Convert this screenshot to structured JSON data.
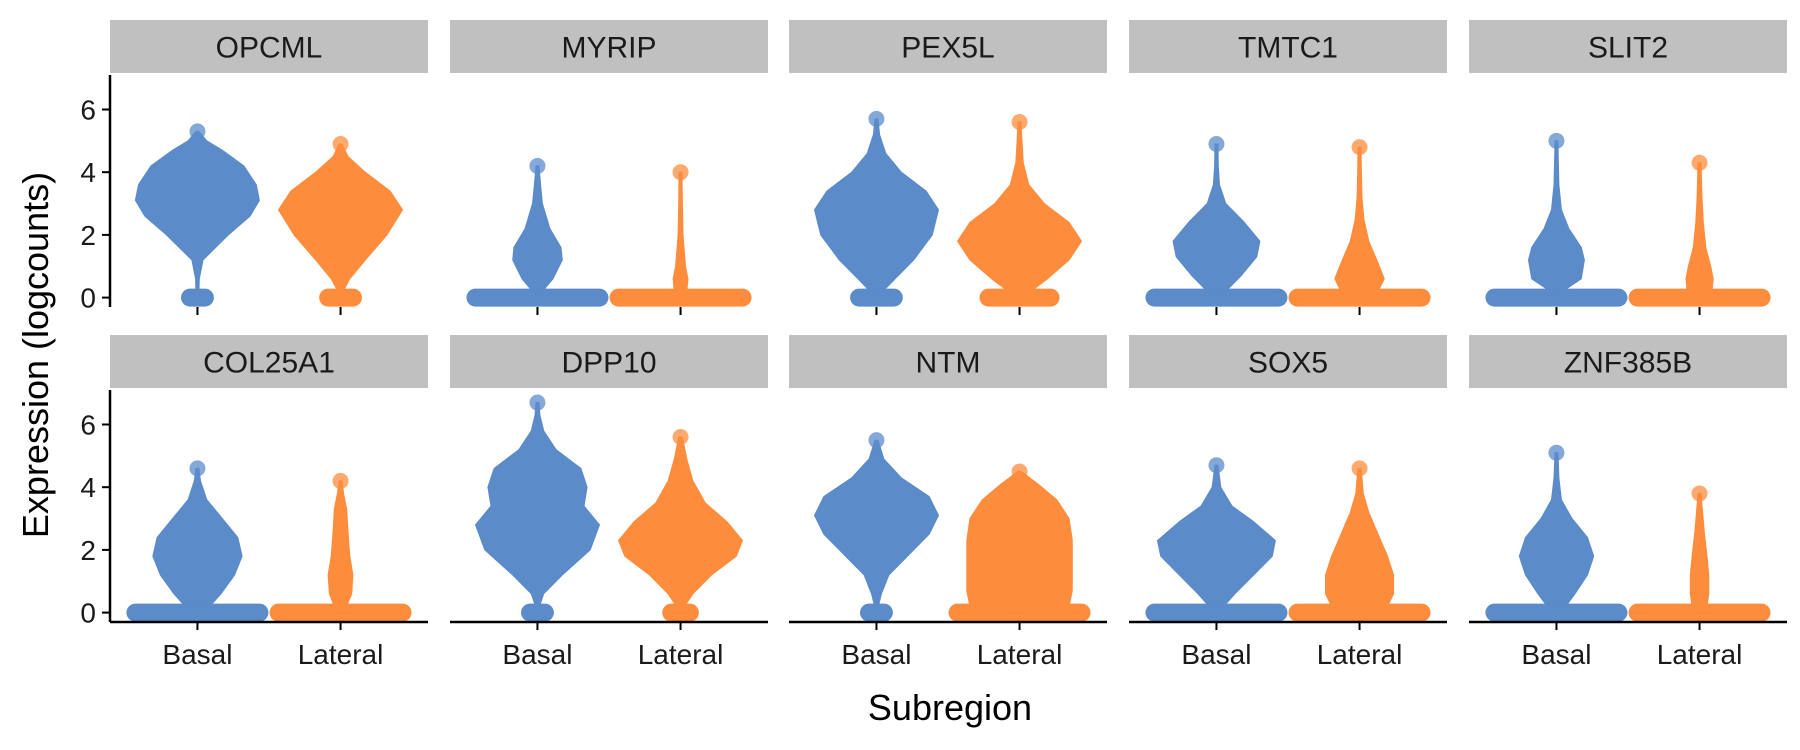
{
  "chart_data": {
    "type": "violin",
    "xlabel": "Subregion",
    "ylabel": "Expression (logcounts)",
    "categories": [
      "Basal",
      "Lateral"
    ],
    "ylim": [
      -0.3,
      7.1
    ],
    "yticks": [
      0,
      2,
      4,
      6
    ],
    "colors": {
      "Basal": "#5b8bc9",
      "Lateral": "#fd8c3c",
      "strip": "#c0c0c0"
    },
    "panels": [
      {
        "gene": "OPCML",
        "violins": [
          {
            "group": "Basal",
            "max": 5.3,
            "zero_width": 0.12,
            "profile": [
              [
                0.15,
                0.01
              ],
              [
                0.6,
                0.03
              ],
              [
                1.2,
                0.09
              ],
              [
                2.0,
                0.5
              ],
              [
                2.6,
                0.85
              ],
              [
                3.1,
                1.0
              ],
              [
                3.6,
                0.95
              ],
              [
                4.2,
                0.75
              ],
              [
                4.7,
                0.4
              ],
              [
                5.0,
                0.15
              ],
              [
                5.3,
                0.02
              ]
            ]
          },
          {
            "group": "Lateral",
            "max": 4.9,
            "zero_width": 0.2,
            "profile": [
              [
                0.15,
                0.03
              ],
              [
                0.6,
                0.15
              ],
              [
                1.2,
                0.4
              ],
              [
                2.0,
                0.75
              ],
              [
                2.8,
                1.0
              ],
              [
                3.4,
                0.8
              ],
              [
                4.0,
                0.4
              ],
              [
                4.5,
                0.12
              ],
              [
                4.9,
                0.02
              ]
            ]
          }
        ]
      },
      {
        "gene": "MYRIP",
        "violins": [
          {
            "group": "Basal",
            "max": 4.2,
            "zero_width": 1.0,
            "profile": [
              [
                0.2,
                0.08
              ],
              [
                0.6,
                0.25
              ],
              [
                1.2,
                0.4
              ],
              [
                1.6,
                0.38
              ],
              [
                2.2,
                0.2
              ],
              [
                3.0,
                0.08
              ],
              [
                3.6,
                0.05
              ],
              [
                4.2,
                0.02
              ]
            ]
          },
          {
            "group": "Lateral",
            "max": 4.0,
            "zero_width": 1.0,
            "profile": [
              [
                0.2,
                0.1
              ],
              [
                0.6,
                0.12
              ],
              [
                1.0,
                0.08
              ],
              [
                2.0,
                0.04
              ],
              [
                3.0,
                0.03
              ],
              [
                4.0,
                0.01
              ]
            ]
          }
        ]
      },
      {
        "gene": "PEX5L",
        "violins": [
          {
            "group": "Basal",
            "max": 5.7,
            "zero_width": 0.28,
            "profile": [
              [
                0.15,
                0.08
              ],
              [
                0.6,
                0.3
              ],
              [
                1.2,
                0.6
              ],
              [
                2.0,
                0.9
              ],
              [
                2.8,
                1.0
              ],
              [
                3.4,
                0.8
              ],
              [
                4.0,
                0.4
              ],
              [
                4.6,
                0.15
              ],
              [
                5.2,
                0.05
              ],
              [
                5.7,
                0.02
              ]
            ]
          },
          {
            "group": "Lateral",
            "max": 5.6,
            "zero_width": 0.5,
            "profile": [
              [
                0.15,
                0.15
              ],
              [
                0.6,
                0.45
              ],
              [
                1.2,
                0.8
              ],
              [
                1.8,
                1.0
              ],
              [
                2.4,
                0.8
              ],
              [
                3.0,
                0.4
              ],
              [
                3.6,
                0.15
              ],
              [
                4.3,
                0.06
              ],
              [
                5.0,
                0.04
              ],
              [
                5.6,
                0.01
              ]
            ]
          }
        ]
      },
      {
        "gene": "TMTC1",
        "violins": [
          {
            "group": "Basal",
            "max": 4.9,
            "zero_width": 1.0,
            "profile": [
              [
                0.2,
                0.15
              ],
              [
                0.7,
                0.4
              ],
              [
                1.3,
                0.65
              ],
              [
                1.8,
                0.7
              ],
              [
                2.4,
                0.45
              ],
              [
                3.0,
                0.15
              ],
              [
                3.6,
                0.05
              ],
              [
                4.2,
                0.03
              ],
              [
                4.9,
                0.02
              ]
            ]
          },
          {
            "group": "Lateral",
            "max": 4.8,
            "zero_width": 1.0,
            "profile": [
              [
                0.2,
                0.3
              ],
              [
                0.6,
                0.4
              ],
              [
                1.1,
                0.3
              ],
              [
                1.8,
                0.15
              ],
              [
                2.5,
                0.07
              ],
              [
                3.2,
                0.04
              ],
              [
                4.0,
                0.03
              ],
              [
                4.8,
                0.01
              ]
            ]
          }
        ]
      },
      {
        "gene": "SLIT2",
        "violins": [
          {
            "group": "Basal",
            "max": 5.0,
            "zero_width": 1.0,
            "profile": [
              [
                0.2,
                0.1
              ],
              [
                0.6,
                0.4
              ],
              [
                1.2,
                0.45
              ],
              [
                1.6,
                0.4
              ],
              [
                2.2,
                0.2
              ],
              [
                2.8,
                0.08
              ],
              [
                3.6,
                0.04
              ],
              [
                4.4,
                0.03
              ],
              [
                5.0,
                0.01
              ]
            ]
          },
          {
            "group": "Lateral",
            "max": 4.3,
            "zero_width": 1.0,
            "profile": [
              [
                0.2,
                0.2
              ],
              [
                0.6,
                0.22
              ],
              [
                1.0,
                0.18
              ],
              [
                1.6,
                0.1
              ],
              [
                2.4,
                0.06
              ],
              [
                3.2,
                0.04
              ],
              [
                4.3,
                0.01
              ]
            ]
          }
        ]
      },
      {
        "gene": "COL25A1",
        "violins": [
          {
            "group": "Basal",
            "max": 4.6,
            "zero_width": 1.0,
            "profile": [
              [
                0.2,
                0.2
              ],
              [
                0.6,
                0.38
              ],
              [
                1.2,
                0.6
              ],
              [
                1.8,
                0.72
              ],
              [
                2.4,
                0.65
              ],
              [
                3.0,
                0.4
              ],
              [
                3.6,
                0.15
              ],
              [
                4.2,
                0.05
              ],
              [
                4.6,
                0.02
              ]
            ]
          },
          {
            "group": "Lateral",
            "max": 4.2,
            "zero_width": 1.0,
            "profile": [
              [
                0.2,
                0.1
              ],
              [
                0.6,
                0.18
              ],
              [
                1.2,
                0.2
              ],
              [
                1.8,
                0.15
              ],
              [
                2.6,
                0.12
              ],
              [
                3.3,
                0.1
              ],
              [
                3.8,
                0.05
              ],
              [
                4.2,
                0.02
              ]
            ]
          }
        ]
      },
      {
        "gene": "DPP10",
        "violins": [
          {
            "group": "Basal",
            "max": 6.7,
            "zero_width": 0.12,
            "profile": [
              [
                0.15,
                0.02
              ],
              [
                0.6,
                0.1
              ],
              [
                1.2,
                0.4
              ],
              [
                2.0,
                0.85
              ],
              [
                2.8,
                1.0
              ],
              [
                3.4,
                0.75
              ],
              [
                4.0,
                0.8
              ],
              [
                4.6,
                0.7
              ],
              [
                5.2,
                0.3
              ],
              [
                5.8,
                0.1
              ],
              [
                6.3,
                0.04
              ],
              [
                6.7,
                0.02
              ]
            ]
          },
          {
            "group": "Lateral",
            "max": 5.6,
            "zero_width": 0.15,
            "profile": [
              [
                0.15,
                0.05
              ],
              [
                0.6,
                0.2
              ],
              [
                1.2,
                0.5
              ],
              [
                1.8,
                0.9
              ],
              [
                2.3,
                1.0
              ],
              [
                2.9,
                0.75
              ],
              [
                3.5,
                0.4
              ],
              [
                4.2,
                0.2
              ],
              [
                4.9,
                0.1
              ],
              [
                5.6,
                0.03
              ]
            ]
          }
        ]
      },
      {
        "gene": "NTM",
        "violins": [
          {
            "group": "Basal",
            "max": 5.5,
            "zero_width": 0.12,
            "profile": [
              [
                0.15,
                0.02
              ],
              [
                0.6,
                0.08
              ],
              [
                1.2,
                0.2
              ],
              [
                1.8,
                0.5
              ],
              [
                2.5,
                0.85
              ],
              [
                3.1,
                1.0
              ],
              [
                3.7,
                0.85
              ],
              [
                4.3,
                0.4
              ],
              [
                4.9,
                0.12
              ],
              [
                5.5,
                0.02
              ]
            ]
          },
          {
            "group": "Lateral",
            "max": 4.5,
            "zero_width": 1.0,
            "profile": [
              [
                0.2,
                0.8
              ],
              [
                0.7,
                0.85
              ],
              [
                1.5,
                0.85
              ],
              [
                2.3,
                0.85
              ],
              [
                3.0,
                0.8
              ],
              [
                3.6,
                0.6
              ],
              [
                4.1,
                0.3
              ],
              [
                4.5,
                0.03
              ]
            ]
          }
        ]
      },
      {
        "gene": "SOX5",
        "violins": [
          {
            "group": "Basal",
            "max": 4.7,
            "zero_width": 1.0,
            "profile": [
              [
                0.2,
                0.12
              ],
              [
                0.6,
                0.3
              ],
              [
                1.2,
                0.6
              ],
              [
                1.8,
                0.9
              ],
              [
                2.3,
                0.95
              ],
              [
                2.9,
                0.6
              ],
              [
                3.4,
                0.25
              ],
              [
                4.0,
                0.07
              ],
              [
                4.7,
                0.02
              ]
            ]
          },
          {
            "group": "Lateral",
            "max": 4.6,
            "zero_width": 1.0,
            "profile": [
              [
                0.2,
                0.45
              ],
              [
                0.6,
                0.55
              ],
              [
                1.2,
                0.55
              ],
              [
                1.8,
                0.45
              ],
              [
                2.5,
                0.3
              ],
              [
                3.2,
                0.15
              ],
              [
                3.8,
                0.06
              ],
              [
                4.3,
                0.04
              ],
              [
                4.6,
                0.02
              ]
            ]
          }
        ]
      },
      {
        "gene": "ZNF385B",
        "violins": [
          {
            "group": "Basal",
            "max": 5.1,
            "zero_width": 1.0,
            "profile": [
              [
                0.2,
                0.15
              ],
              [
                0.6,
                0.3
              ],
              [
                1.2,
                0.5
              ],
              [
                1.8,
                0.6
              ],
              [
                2.4,
                0.5
              ],
              [
                3.0,
                0.25
              ],
              [
                3.6,
                0.08
              ],
              [
                4.3,
                0.04
              ],
              [
                5.1,
                0.02
              ]
            ]
          },
          {
            "group": "Lateral",
            "max": 3.8,
            "zero_width": 1.0,
            "profile": [
              [
                0.2,
                0.12
              ],
              [
                0.6,
                0.15
              ],
              [
                1.2,
                0.15
              ],
              [
                1.8,
                0.12
              ],
              [
                2.5,
                0.08
              ],
              [
                3.2,
                0.05
              ],
              [
                3.8,
                0.02
              ]
            ]
          }
        ]
      }
    ]
  }
}
